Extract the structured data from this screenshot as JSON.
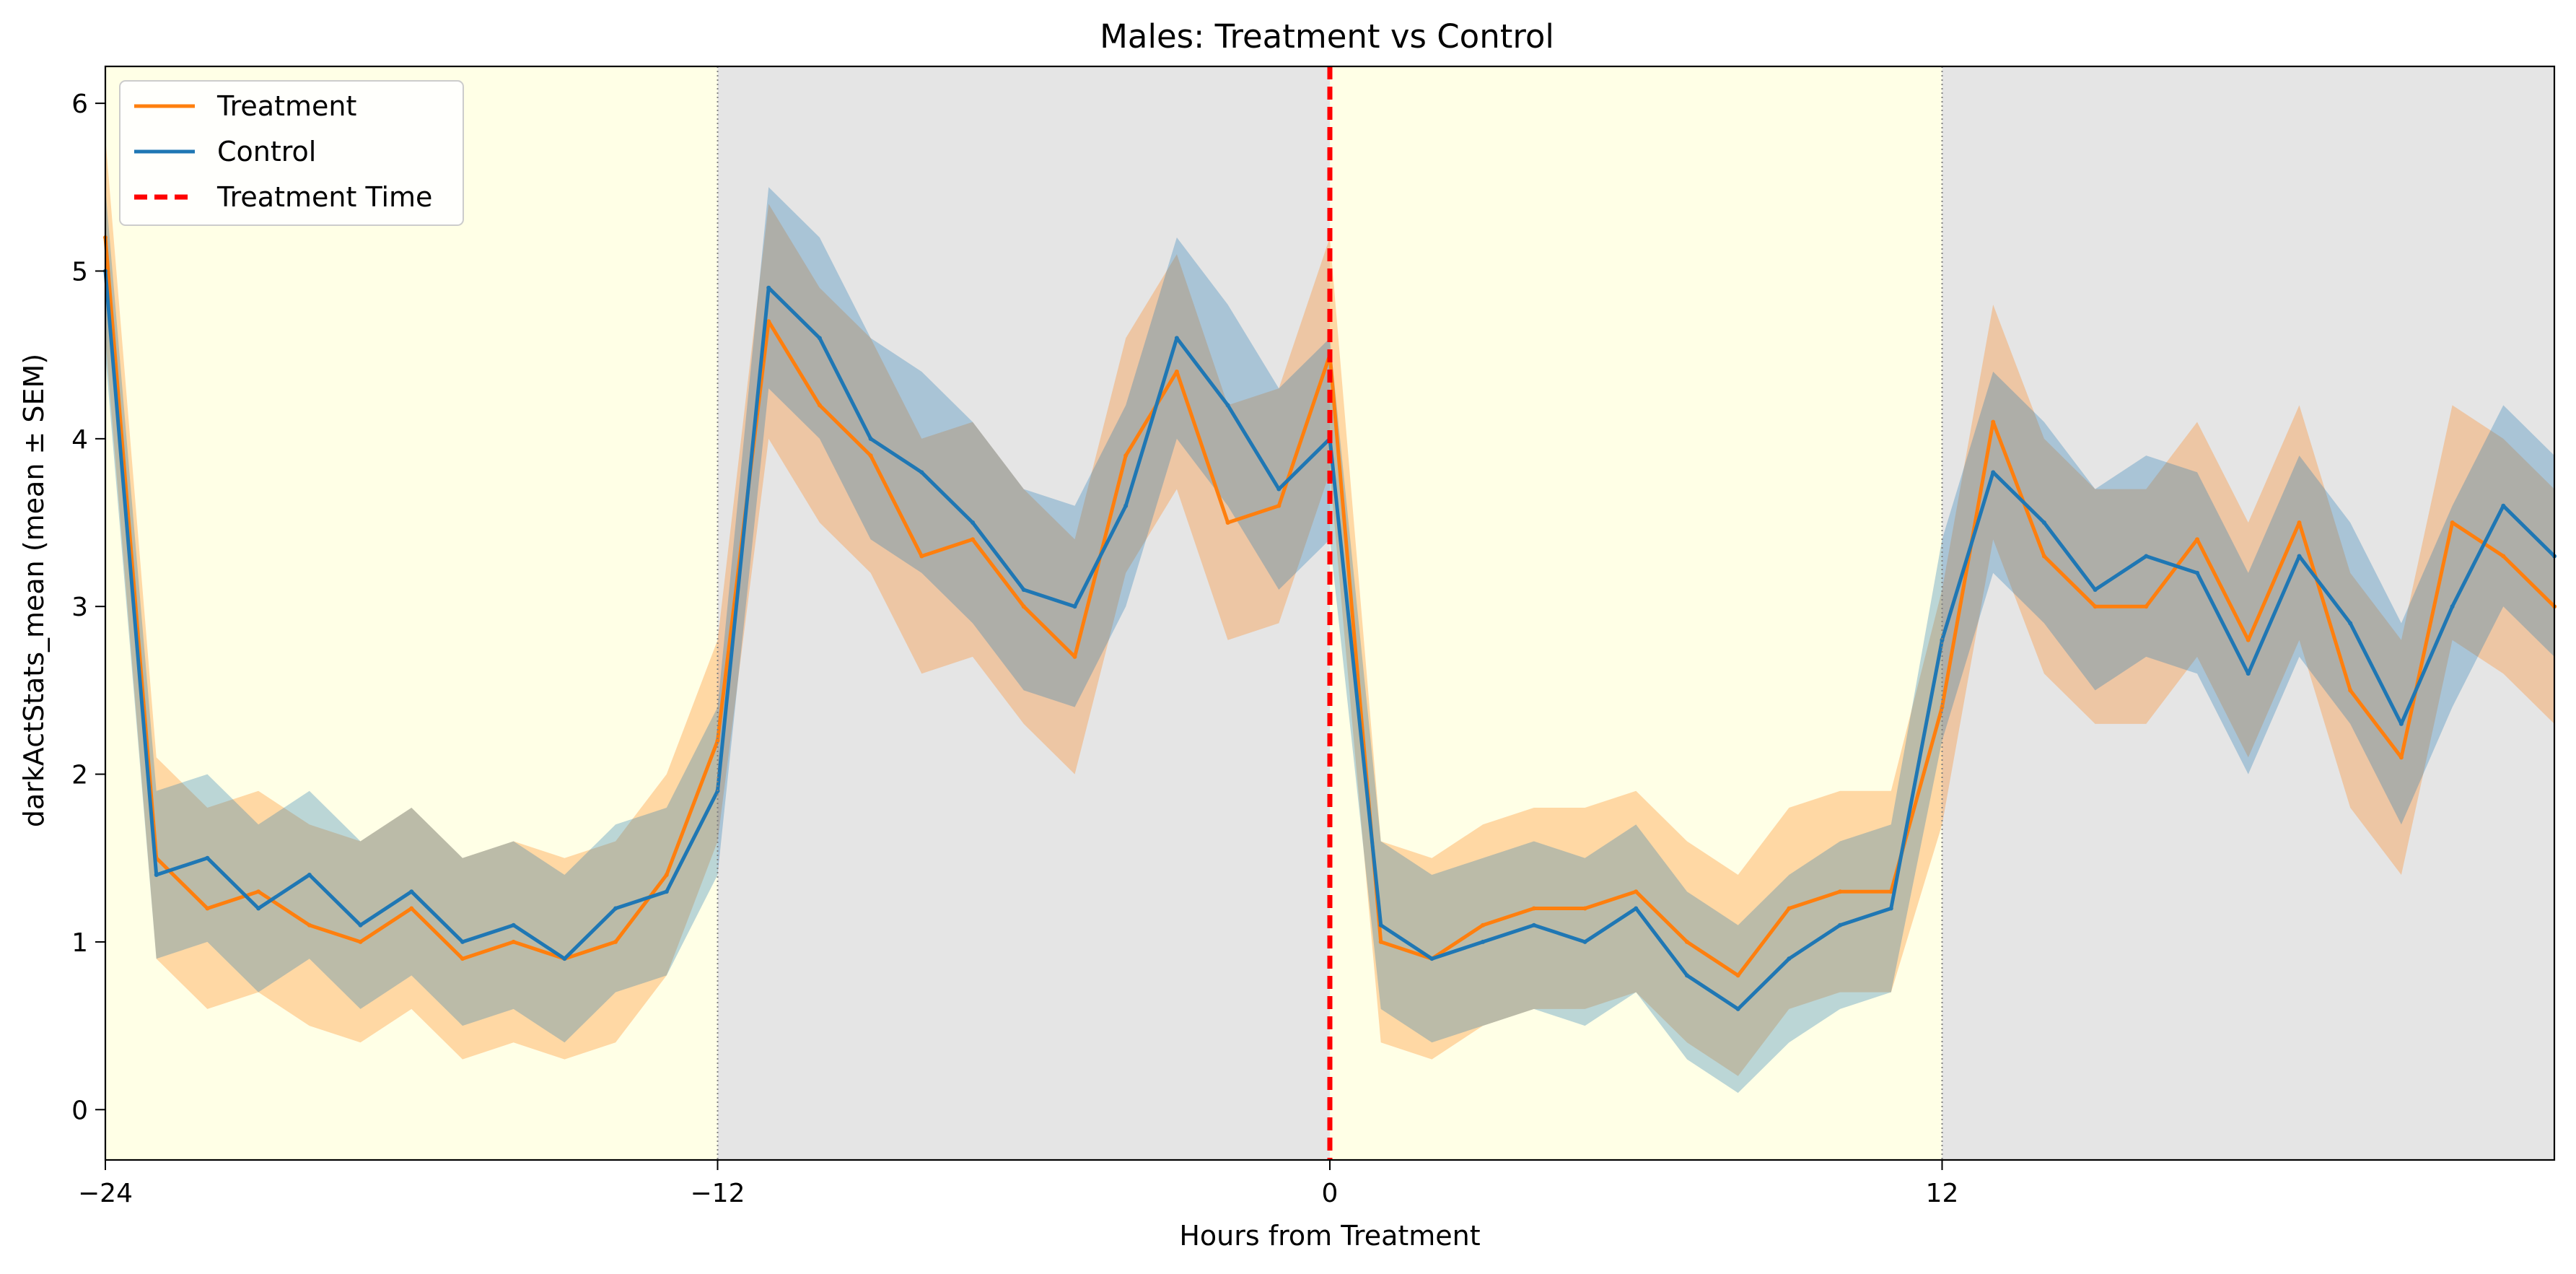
{
  "chart_data": {
    "type": "line",
    "title": "Males: Treatment vs Control",
    "xlabel": "Hours from Treatment",
    "ylabel": "darkActStats_mean (mean ± SEM)",
    "xlim": [
      -24,
      24
    ],
    "ylim": [
      -0.3,
      6.22
    ],
    "xticks": [
      -24,
      -12,
      0,
      12
    ],
    "xtick_labels": [
      "−24",
      "−12",
      "0",
      "12"
    ],
    "yticks": [
      0,
      1,
      2,
      3,
      4,
      5,
      6
    ],
    "ytick_labels": [
      "0",
      "1",
      "2",
      "3",
      "4",
      "5",
      "6"
    ],
    "legend_position": "top-left",
    "background_bands": [
      {
        "phase": "light",
        "start": -24,
        "end": -12,
        "color": "#ffffe6"
      },
      {
        "phase": "dark",
        "start": -12,
        "end": 0,
        "color": "#e5e5e5"
      },
      {
        "phase": "light",
        "start": 0,
        "end": 12,
        "color": "#ffffe6"
      },
      {
        "phase": "dark",
        "start": 12,
        "end": 24,
        "color": "#e5e5e5"
      }
    ],
    "series": [
      {
        "name": "Treatment",
        "color": "#ff7f0e",
        "x": [
          -24,
          -23,
          -22,
          -21,
          -20,
          -19,
          -18,
          -17,
          -16,
          -15,
          -14,
          -13,
          -12,
          -11,
          -10,
          -9,
          -8,
          -7,
          -6,
          -5,
          -4,
          -3,
          -2,
          -1,
          0,
          1,
          2,
          3,
          4,
          5,
          6,
          7,
          8,
          9,
          10,
          11,
          12,
          13,
          14,
          15,
          16,
          17,
          18,
          19,
          20,
          21,
          22,
          23,
          24
        ],
        "mean": [
          5.2,
          1.5,
          1.2,
          1.3,
          1.1,
          1.0,
          1.2,
          0.9,
          1.0,
          0.9,
          1.0,
          1.4,
          2.2,
          4.7,
          4.2,
          3.9,
          3.3,
          3.4,
          3.0,
          2.7,
          3.9,
          4.4,
          3.5,
          3.6,
          4.5,
          1.0,
          0.9,
          1.1,
          1.2,
          1.2,
          1.3,
          1.0,
          0.8,
          1.2,
          1.3,
          1.3,
          2.4,
          4.1,
          3.3,
          3.0,
          3.0,
          3.4,
          2.8,
          3.5,
          2.5,
          2.1,
          3.5,
          3.3,
          3.0
        ],
        "sem": [
          0.6,
          0.6,
          0.6,
          0.6,
          0.6,
          0.6,
          0.6,
          0.6,
          0.6,
          0.6,
          0.6,
          0.6,
          0.6,
          0.7,
          0.7,
          0.7,
          0.7,
          0.7,
          0.7,
          0.7,
          0.7,
          0.7,
          0.7,
          0.7,
          0.7,
          0.6,
          0.6,
          0.6,
          0.6,
          0.6,
          0.6,
          0.6,
          0.6,
          0.6,
          0.6,
          0.6,
          0.7,
          0.7,
          0.7,
          0.7,
          0.7,
          0.7,
          0.7,
          0.7,
          0.7,
          0.7,
          0.7,
          0.7,
          0.7
        ]
      },
      {
        "name": "Control",
        "color": "#1f77b4",
        "x": [
          -24,
          -23,
          -22,
          -21,
          -20,
          -19,
          -18,
          -17,
          -16,
          -15,
          -14,
          -13,
          -12,
          -11,
          -10,
          -9,
          -8,
          -7,
          -6,
          -5,
          -4,
          -3,
          -2,
          -1,
          0,
          1,
          2,
          3,
          4,
          5,
          6,
          7,
          8,
          9,
          10,
          11,
          12,
          13,
          14,
          15,
          16,
          17,
          18,
          19,
          20,
          21,
          22,
          23,
          24
        ],
        "mean": [
          5.0,
          1.4,
          1.5,
          1.2,
          1.4,
          1.1,
          1.3,
          1.0,
          1.1,
          0.9,
          1.2,
          1.3,
          1.9,
          4.9,
          4.6,
          4.0,
          3.8,
          3.5,
          3.1,
          3.0,
          3.6,
          4.6,
          4.2,
          3.7,
          4.0,
          1.1,
          0.9,
          1.0,
          1.1,
          1.0,
          1.2,
          0.8,
          0.6,
          0.9,
          1.1,
          1.2,
          2.8,
          3.8,
          3.5,
          3.1,
          3.3,
          3.2,
          2.6,
          3.3,
          2.9,
          2.3,
          3.0,
          3.6,
          3.3
        ],
        "sem": [
          0.5,
          0.5,
          0.5,
          0.5,
          0.5,
          0.5,
          0.5,
          0.5,
          0.5,
          0.5,
          0.5,
          0.5,
          0.5,
          0.6,
          0.6,
          0.6,
          0.6,
          0.6,
          0.6,
          0.6,
          0.6,
          0.6,
          0.6,
          0.6,
          0.6,
          0.5,
          0.5,
          0.5,
          0.5,
          0.5,
          0.5,
          0.5,
          0.5,
          0.5,
          0.5,
          0.5,
          0.6,
          0.6,
          0.6,
          0.6,
          0.6,
          0.6,
          0.6,
          0.6,
          0.6,
          0.6,
          0.6,
          0.6,
          0.6
        ]
      }
    ],
    "reference_line": {
      "name": "Treatment Time",
      "x": 0,
      "color": "#ff0000",
      "style": "dashed"
    },
    "phase_boundaries": [
      -12,
      12
    ]
  }
}
